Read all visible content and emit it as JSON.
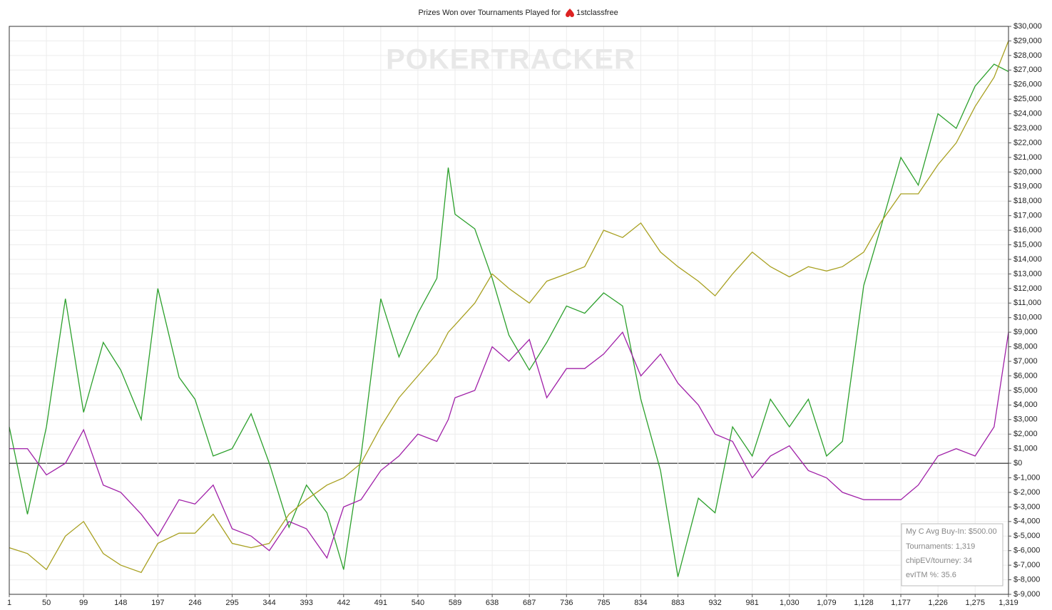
{
  "chart_data": {
    "type": "line",
    "title": "Prizes Won over Tournaments Played for",
    "player": "1stclassfree",
    "watermark": "POKERTRACKER",
    "stats": [
      "My C Avg Buy-In: $500.00",
      "Tournaments: 1,319",
      "chipEV/tourney: 34",
      "evITM %: 35.6"
    ],
    "x": [
      1,
      25,
      50,
      75,
      99,
      125,
      148,
      175,
      197,
      225,
      246,
      270,
      295,
      320,
      344,
      370,
      393,
      420,
      442,
      465,
      491,
      515,
      540,
      565,
      580,
      589,
      615,
      638,
      660,
      687,
      710,
      736,
      760,
      785,
      810,
      834,
      860,
      883,
      910,
      932,
      955,
      981,
      1005,
      1030,
      1055,
      1079,
      1100,
      1128,
      1150,
      1177,
      1200,
      1226,
      1250,
      1275,
      1300,
      1319
    ],
    "series": [
      {
        "color": "#2ca02c",
        "values": [
          2500,
          -3500,
          2500,
          11300,
          3500,
          8300,
          6400,
          3000,
          12000,
          5900,
          4400,
          500,
          1000,
          3400,
          0,
          -4400,
          -1500,
          -3400,
          -7300,
          500,
          11300,
          7300,
          10300,
          12700,
          20300,
          17100,
          16100,
          12700,
          8800,
          6400,
          8300,
          10800,
          10300,
          11700,
          10800,
          4400,
          -500,
          -7800,
          -2400,
          -3400,
          2500,
          500,
          4400,
          2500,
          4400,
          500,
          1500,
          12200,
          16100,
          21000,
          19100,
          24000,
          23000,
          25900,
          27400,
          26900
        ]
      },
      {
        "color": "#a8a020",
        "values": [
          -5800,
          -6200,
          -7300,
          -5000,
          -4000,
          -6200,
          -7000,
          -7500,
          -5500,
          -4800,
          -4800,
          -3500,
          -5500,
          -5800,
          -5500,
          -3500,
          -2500,
          -1500,
          -1000,
          0,
          2500,
          4500,
          6000,
          7500,
          9000,
          9500,
          11000,
          13000,
          12000,
          11000,
          12500,
          13000,
          13500,
          16000,
          15500,
          16500,
          14500,
          13500,
          12500,
          11500,
          13000,
          14500,
          13500,
          12800,
          13500,
          13200,
          13500,
          14500,
          16500,
          18500,
          18500,
          20500,
          22000,
          24500,
          26500,
          29000
        ]
      },
      {
        "color": "#a020a8",
        "values": [
          1000,
          1000,
          -800,
          0,
          2300,
          -1500,
          -2000,
          -3500,
          -5000,
          -2500,
          -2800,
          -1500,
          -4500,
          -5000,
          -6000,
          -4000,
          -4500,
          -6500,
          -3000,
          -2500,
          -500,
          500,
          2000,
          1500,
          3000,
          4500,
          5000,
          8000,
          7000,
          8500,
          4500,
          6500,
          6500,
          7500,
          9000,
          6000,
          7500,
          5500,
          4000,
          2000,
          1500,
          -1000,
          500,
          1200,
          -500,
          -1000,
          -2000,
          -2500,
          -2500,
          -2500,
          -1500,
          500,
          1000,
          500,
          2500,
          9000
        ]
      }
    ],
    "xlim": [
      1,
      1319
    ],
    "xticks": [
      1,
      50,
      99,
      148,
      197,
      246,
      295,
      344,
      393,
      442,
      491,
      540,
      589,
      638,
      687,
      736,
      785,
      834,
      883,
      932,
      981,
      {
        "value": 1030,
        "label": "1,030"
      },
      {
        "value": 1079,
        "label": "1,079"
      },
      {
        "value": 1128,
        "label": "1,128"
      },
      {
        "value": 1177,
        "label": "1,177"
      },
      {
        "value": 1226,
        "label": "1,226"
      },
      {
        "value": 1275,
        "label": "1,275"
      },
      {
        "value": 1319,
        "label": "1,319"
      }
    ],
    "ylim": [
      -9000,
      30000
    ],
    "yticks": [
      {
        "value": -9000,
        "label": "$-9,000"
      },
      {
        "value": -8000,
        "label": "$-8,000"
      },
      {
        "value": -7000,
        "label": "$-7,000"
      },
      {
        "value": -6000,
        "label": "$-6,000"
      },
      {
        "value": -5000,
        "label": "$-5,000"
      },
      {
        "value": -4000,
        "label": "$-4,000"
      },
      {
        "value": -3000,
        "label": "$-3,000"
      },
      {
        "value": -2000,
        "label": "$-2,000"
      },
      {
        "value": -1000,
        "label": "$-1,000"
      },
      {
        "value": 0,
        "label": "$0"
      },
      {
        "value": 1000,
        "label": "$1,000"
      },
      {
        "value": 2000,
        "label": "$2,000"
      },
      {
        "value": 3000,
        "label": "$3,000"
      },
      {
        "value": 4000,
        "label": "$4,000"
      },
      {
        "value": 5000,
        "label": "$5,000"
      },
      {
        "value": 6000,
        "label": "$6,000"
      },
      {
        "value": 7000,
        "label": "$7,000"
      },
      {
        "value": 8000,
        "label": "$8,000"
      },
      {
        "value": 9000,
        "label": "$9,000"
      },
      {
        "value": 10000,
        "label": "$10,000"
      },
      {
        "value": 11000,
        "label": "$11,000"
      },
      {
        "value": 12000,
        "label": "$12,000"
      },
      {
        "value": 13000,
        "label": "$13,000"
      },
      {
        "value": 14000,
        "label": "$14,000"
      },
      {
        "value": 15000,
        "label": "$15,000"
      },
      {
        "value": 16000,
        "label": "$16,000"
      },
      {
        "value": 17000,
        "label": "$17,000"
      },
      {
        "value": 18000,
        "label": "$18,000"
      },
      {
        "value": 19000,
        "label": "$19,000"
      },
      {
        "value": 20000,
        "label": "$20,000"
      },
      {
        "value": 21000,
        "label": "$21,000"
      },
      {
        "value": 22000,
        "label": "$22,000"
      },
      {
        "value": 23000,
        "label": "$23,000"
      },
      {
        "value": 24000,
        "label": "$24,000"
      },
      {
        "value": 25000,
        "label": "$25,000"
      },
      {
        "value": 26000,
        "label": "$26,000"
      },
      {
        "value": 27000,
        "label": "$27,000"
      },
      {
        "value": 28000,
        "label": "$28,000"
      },
      {
        "value": 29000,
        "label": "$29,000"
      },
      {
        "value": 30000,
        "label": "$30,000"
      }
    ],
    "grid": true
  }
}
